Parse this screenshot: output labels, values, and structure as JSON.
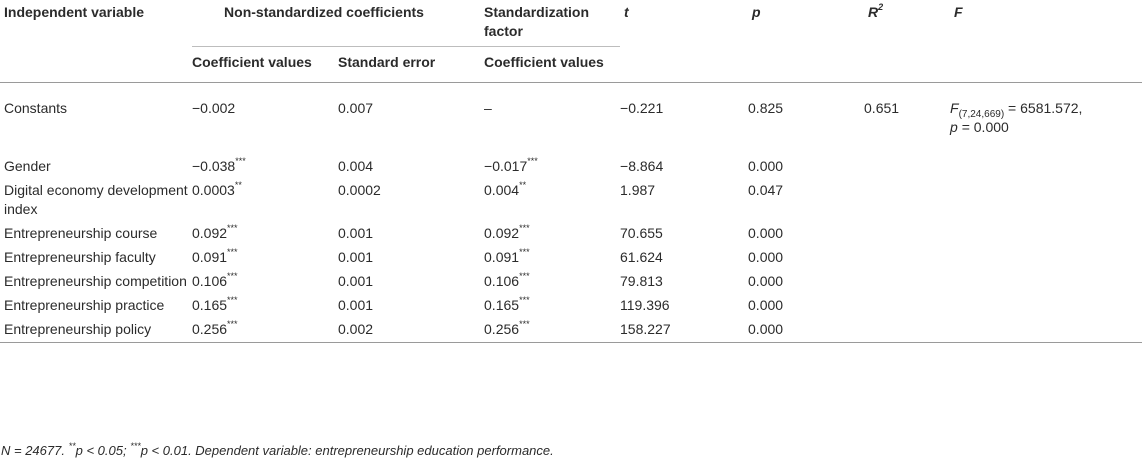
{
  "header": {
    "independent_variable": "Independent variable",
    "non_standardized": "Non-standardized coefficients",
    "standardization_factor": "Standardization factor",
    "t": "t",
    "p": "p",
    "r_squared_base": "R",
    "r_squared_sup": "2",
    "f": "F",
    "coefficient_values": "Coefficient values",
    "standard_error": "Standard error",
    "std_coefficient_values": "Coefficient values"
  },
  "rows": [
    {
      "variable": "Constants",
      "coef": "−0.002",
      "coef_sig": "",
      "se": "0.007",
      "std": "–",
      "std_sig": "",
      "t": "−0.221",
      "p": "0.825",
      "r2": "0.651",
      "f_pre": "F",
      "f_sub": "(7,24,669)",
      "f_val": " = 6581.572,",
      "f_p_label": "p",
      "f_p_val": " = 0.000"
    },
    {
      "variable": "Gender",
      "coef": "−0.038",
      "coef_sig": "***",
      "se": "0.004",
      "std": "−0.017",
      "std_sig": "***",
      "t": "−8.864",
      "p": "0.000"
    },
    {
      "variable": "Digital economy development index",
      "coef": "0.0003",
      "coef_sig": "**",
      "se": "0.0002",
      "std": "0.004",
      "std_sig": "**",
      "t": "1.987",
      "p": "0.047"
    },
    {
      "variable": "Entrepreneurship course",
      "coef": "0.092",
      "coef_sig": "***",
      "se": "0.001",
      "std": "0.092",
      "std_sig": "***",
      "t": "70.655",
      "p": "0.000"
    },
    {
      "variable": "Entrepreneurship faculty",
      "coef": "0.091",
      "coef_sig": "***",
      "se": "0.001",
      "std": "0.091",
      "std_sig": "***",
      "t": "61.624",
      "p": "0.000"
    },
    {
      "variable": "Entrepreneurship competition",
      "coef": "0.106",
      "coef_sig": "***",
      "se": "0.001",
      "std": "0.106",
      "std_sig": "***",
      "t": "79.813",
      "p": "0.000"
    },
    {
      "variable": "Entrepreneurship practice",
      "coef": "0.165",
      "coef_sig": "***",
      "se": "0.001",
      "std": "0.165",
      "std_sig": "***",
      "t": "119.396",
      "p": "0.000"
    },
    {
      "variable": "Entrepreneurship policy",
      "coef": "0.256",
      "coef_sig": "***",
      "se": "0.002",
      "std": "0.256",
      "std_sig": "***",
      "t": "158.227",
      "p": "0.000"
    }
  ],
  "note": {
    "n": "N = 24677.",
    "sig2": "**",
    "sig2_text": "p < 0.05;",
    "sig3": "***",
    "sig3_text": "p < 0.01. Dependent variable: entrepreneurship education performance."
  }
}
